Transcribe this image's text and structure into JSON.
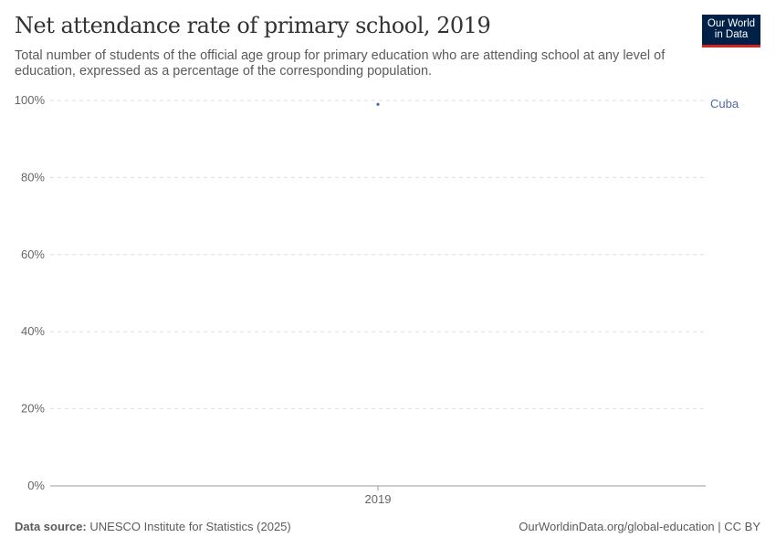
{
  "header": {
    "title": "Net attendance rate of primary school, 2019",
    "subtitle": "Total number of students of the official age group for primary education who are attending school at any level of education, expressed as a percentage of the corresponding population.",
    "logo": "Our World in Data"
  },
  "footer": {
    "source_label": "Data source:",
    "source": "UNESCO Institute for Statistics (2025)",
    "url": "OurWorldinData.org/global-education | CC BY"
  },
  "chart_data": {
    "type": "scatter",
    "title": "Net attendance rate of primary school, 2019",
    "x_ticks": [
      "2019"
    ],
    "y_ticks": [
      "0%",
      "20%",
      "40%",
      "60%",
      "80%",
      "100%"
    ],
    "ylim": [
      0,
      100
    ],
    "grid": true,
    "series": [
      {
        "name": "Cuba",
        "color": "#4c6a9c",
        "points": [
          {
            "x": "2019",
            "y": 99
          }
        ]
      }
    ]
  }
}
